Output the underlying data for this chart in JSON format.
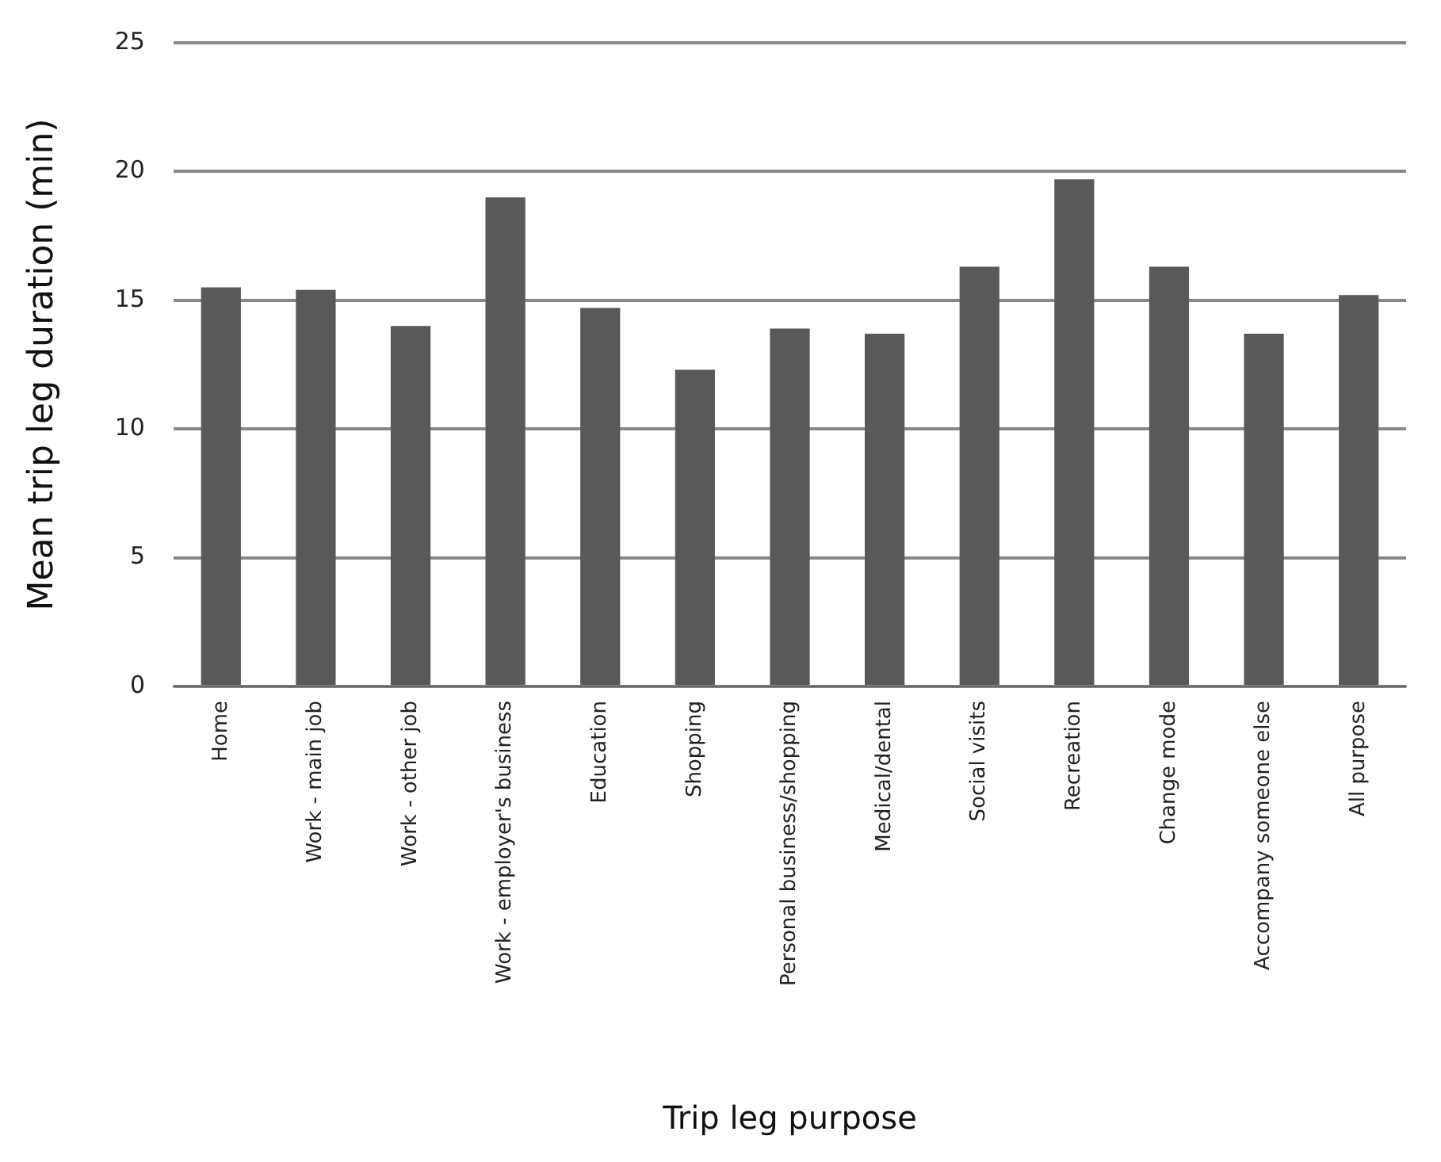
{
  "chart_data": {
    "type": "bar",
    "xlabel": "Trip leg purpose",
    "ylabel": "Mean trip leg duration (min)",
    "categories": [
      "Home",
      "Work - main job",
      "Work - other job",
      "Work - employer's business",
      "Education",
      "Shopping",
      "Personal business/shopping",
      "Medical/dental",
      "Social visits",
      "Recreation",
      "Change mode",
      "Accompany someone else",
      "All purpose"
    ],
    "values": [
      15.5,
      15.4,
      14.0,
      19.0,
      14.7,
      12.3,
      13.9,
      13.7,
      16.3,
      19.7,
      16.3,
      13.7,
      15.2
    ],
    "color": "#595959",
    "ylim": [
      0,
      25
    ],
    "yticks": [
      0,
      5,
      10,
      15,
      20,
      25
    ],
    "grid": "y",
    "legend": false
  }
}
